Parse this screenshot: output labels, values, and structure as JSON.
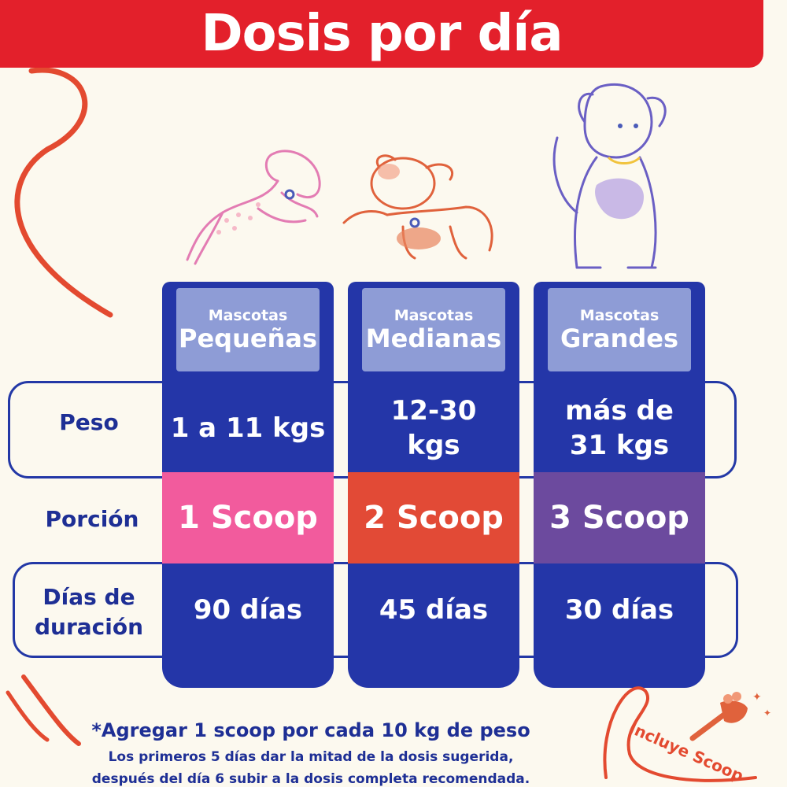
{
  "title": "Dosis por día",
  "colors": {
    "title_bg": "#e3202b",
    "column_blue": "#2436a8",
    "header_tint": "#8e9cd6",
    "small_portion": "#f25b9d",
    "medium_portion": "#e24a36",
    "large_portion": "#6c4a9e",
    "label_text": "#1e2f95",
    "background": "#fcf9ef"
  },
  "row_labels": {
    "weight": "Peso",
    "portion": "Porción",
    "duration_line1": "Días de",
    "duration_line2": "duración"
  },
  "columns": [
    {
      "header_small": "Mascotas",
      "header_big": "Pequeñas",
      "weight_line1": "1 a 11 kgs",
      "weight_line2": "",
      "portion": "1 Scoop",
      "duration": "90 días",
      "icon": "small-dog-jumping-icon"
    },
    {
      "header_small": "Mascotas",
      "header_big": "Medianas",
      "weight_line1": "12-30",
      "weight_line2": "kgs",
      "portion": "2 Scoop",
      "duration": "45 días",
      "icon": "medium-dog-playing-icon"
    },
    {
      "header_small": "Mascotas",
      "header_big": "Grandes",
      "weight_line1": "más de",
      "weight_line2": "31 kgs",
      "portion": "3 Scoop",
      "duration": "30 días",
      "icon": "large-dog-sitting-icon"
    }
  ],
  "notes": {
    "main": "*Agregar 1 scoop por cada 10 kg de peso",
    "line1": "Los primeros 5 días dar la mitad de la dosis sugerida,",
    "line2": "después del día 6 subir a la dosis completa recomendada."
  },
  "badge": {
    "text": "Incluye Scoop",
    "icon": "measuring-scoop-icon"
  }
}
